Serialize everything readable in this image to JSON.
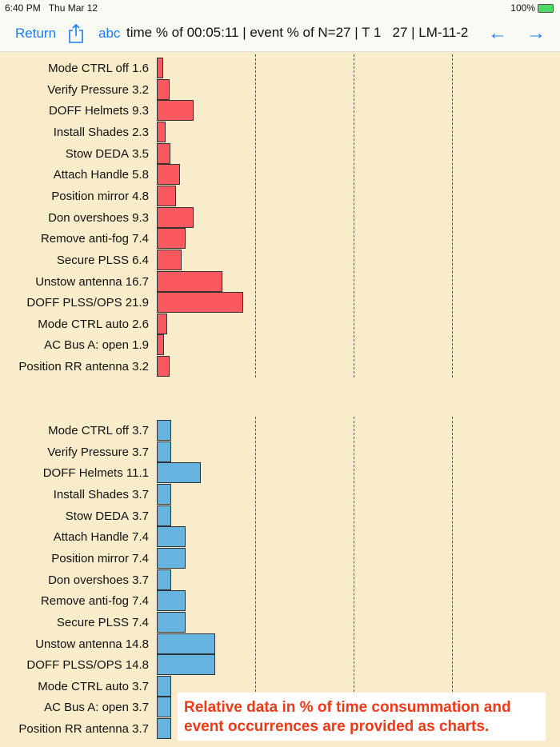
{
  "status": {
    "time": "6:40 PM",
    "date": "Thu Mar 12",
    "battery": "100%"
  },
  "nav": {
    "return_label": "Return",
    "abc_label": "abc",
    "title": "time % of 00:05:11 | event % of N=27 | T 1   27 | LM-11-2"
  },
  "colors": {
    "time_bar": "#f9595f",
    "event_bar": "#66b3df"
  },
  "chart_data": [
    {
      "type": "bar",
      "title": "time %",
      "ylim": [
        0,
        100
      ],
      "gridlines": [
        25,
        50,
        75
      ],
      "categories": [
        "Mode CTRL off",
        "Verify Pressure",
        "DOFF Helmets",
        "Install Shades",
        "Stow DEDA",
        "Attach Handle",
        "Position mirror",
        "Don overshoes",
        "Remove anti-fog",
        "Secure PLSS",
        "Unstow antenna",
        "DOFF PLSS/OPS",
        "Mode CTRL auto",
        "AC Bus A: open",
        "Position RR antenna"
      ],
      "values": [
        1.6,
        3.2,
        9.3,
        2.3,
        3.5,
        5.8,
        4.8,
        9.3,
        7.4,
        6.4,
        16.7,
        21.9,
        2.6,
        1.9,
        3.2
      ]
    },
    {
      "type": "bar",
      "title": "event %",
      "ylim": [
        0,
        100
      ],
      "gridlines": [
        25,
        50,
        75
      ],
      "categories": [
        "Mode CTRL off",
        "Verify Pressure",
        "DOFF Helmets",
        "Install Shades",
        "Stow DEDA",
        "Attach Handle",
        "Position mirror",
        "Don overshoes",
        "Remove anti-fog",
        "Secure PLSS",
        "Unstow antenna",
        "DOFF PLSS/OPS",
        "Mode CTRL auto",
        "AC Bus A: open",
        "Position RR antenna"
      ],
      "values": [
        3.7,
        3.7,
        11.1,
        3.7,
        3.7,
        7.4,
        7.4,
        3.7,
        7.4,
        7.4,
        14.8,
        14.8,
        3.7,
        3.7,
        3.7
      ]
    }
  ],
  "overlay": {
    "line1": "Relative data in % of time consummation and",
    "line2": "event occurrences are provided as charts."
  }
}
